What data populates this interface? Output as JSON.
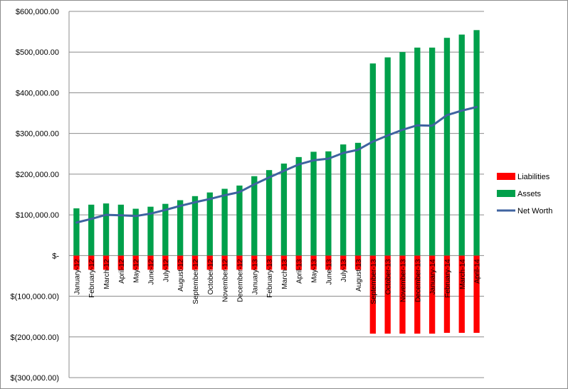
{
  "chart_data": {
    "type": "bar",
    "title": "",
    "xlabel": "",
    "ylabel": "",
    "ylim": [
      -300000,
      600000
    ],
    "ytick_values": [
      600000,
      500000,
      400000,
      300000,
      200000,
      100000,
      0,
      -100000,
      -200000,
      -300000
    ],
    "ytick_labels": [
      "$600,000.00",
      "$500,000.00",
      "$400,000.00",
      "$300,000.00",
      "$200,000.00",
      "$100,000.00",
      "$-",
      "$(100,000.00)",
      "$(200,000.00)",
      "$(300,000.00)"
    ],
    "grid": true,
    "legend_position": "right",
    "categories": [
      "January-12",
      "February-12",
      "March-12",
      "April-12",
      "May-12",
      "June-12",
      "July-12",
      "August-12",
      "September-12",
      "October-12",
      "November-12",
      "December-12",
      "January-13",
      "February-13",
      "March-13",
      "April-13",
      "May-13",
      "June-13",
      "July-13",
      "August-13",
      "September-13",
      "October-13",
      "November-13",
      "December-13",
      "January-14",
      "February-14",
      "March-14",
      "April-14"
    ],
    "series": [
      {
        "name": "Liabilities",
        "type": "bar",
        "color": "#ff0000",
        "values": [
          -35000,
          -35000,
          -35000,
          -35000,
          -35000,
          -35000,
          -35000,
          -35000,
          -35000,
          -35000,
          -35000,
          -35000,
          -35000,
          -35000,
          -35000,
          -35000,
          -35000,
          -35000,
          -35000,
          -35000,
          -192000,
          -192000,
          -192000,
          -192000,
          -192000,
          -190000,
          -190000,
          -190000
        ]
      },
      {
        "name": "Assets",
        "type": "bar",
        "color": "#00a04b",
        "values": [
          116000,
          125000,
          128000,
          125000,
          115000,
          120000,
          127000,
          136000,
          146000,
          155000,
          164000,
          172000,
          195000,
          210000,
          226000,
          242000,
          255000,
          256000,
          273000,
          277000,
          472000,
          487000,
          500000,
          511000,
          511000,
          535000,
          543000,
          554000
        ]
      },
      {
        "name": "Net Worth",
        "type": "line",
        "color": "#3f63a0",
        "values": [
          81000,
          90000,
          100000,
          99000,
          97000,
          103000,
          112000,
          122000,
          131000,
          139000,
          148000,
          156000,
          175000,
          192000,
          208000,
          224000,
          234000,
          238000,
          252000,
          260000,
          280000,
          295000,
          309000,
          320000,
          319000,
          345000,
          356000,
          365000
        ]
      }
    ]
  }
}
